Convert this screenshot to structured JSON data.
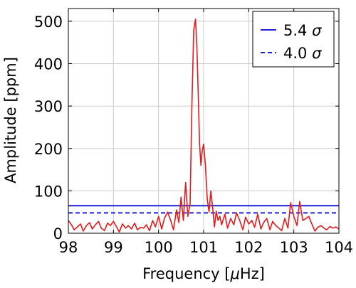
{
  "chart_data": {
    "type": "line",
    "xlabel_prefix": "Frequency [",
    "xlabel_mu": "μ",
    "xlabel_suffix": "Hz]",
    "ylabel": "Amplitude [ppm]",
    "xlim": [
      98,
      104
    ],
    "ylim": [
      0,
      530
    ],
    "xticks": [
      98,
      99,
      100,
      101,
      102,
      103,
      104
    ],
    "yticks": [
      0,
      100,
      200,
      300,
      400,
      500
    ],
    "grid": true,
    "legend_position": "top-right",
    "colors": {
      "spectrum": "#e41a1c",
      "threshold": "#1f1fd6"
    },
    "spectrum": {
      "x": [
        98.0,
        98.07,
        98.13,
        98.2,
        98.27,
        98.33,
        98.4,
        98.47,
        98.53,
        98.6,
        98.67,
        98.73,
        98.8,
        98.87,
        98.93,
        99.0,
        99.07,
        99.13,
        99.2,
        99.27,
        99.33,
        99.4,
        99.47,
        99.53,
        99.6,
        99.67,
        99.73,
        99.8,
        99.87,
        99.93,
        100.0,
        100.07,
        100.13,
        100.2,
        100.27,
        100.33,
        100.4,
        100.45,
        100.5,
        100.55,
        100.6,
        100.65,
        100.7,
        100.74,
        100.78,
        100.82,
        100.85,
        100.88,
        100.91,
        100.94,
        100.97,
        101.0,
        101.04,
        101.08,
        101.12,
        101.16,
        101.2,
        101.24,
        101.28,
        101.32,
        101.36,
        101.4,
        101.47,
        101.53,
        101.6,
        101.67,
        101.73,
        101.8,
        101.87,
        101.93,
        102.0,
        102.07,
        102.13,
        102.2,
        102.27,
        102.33,
        102.4,
        102.47,
        102.53,
        102.6,
        102.67,
        102.73,
        102.8,
        102.87,
        102.93,
        103.0,
        103.07,
        103.13,
        103.2,
        103.27,
        103.33,
        103.4,
        103.47,
        103.53,
        103.6,
        103.67,
        103.73,
        103.8,
        103.87,
        103.93,
        104.0
      ],
      "y": [
        30,
        20,
        8,
        15,
        22,
        5,
        18,
        25,
        10,
        20,
        28,
        12,
        6,
        24,
        18,
        28,
        15,
        3,
        22,
        12,
        18,
        10,
        24,
        8,
        14,
        12,
        20,
        6,
        30,
        15,
        40,
        10,
        35,
        50,
        30,
        8,
        55,
        25,
        85,
        30,
        120,
        40,
        70,
        300,
        480,
        505,
        440,
        330,
        210,
        160,
        195,
        210,
        160,
        80,
        50,
        100,
        60,
        15,
        52,
        30,
        40,
        20,
        45,
        12,
        35,
        20,
        48,
        30,
        8,
        38,
        22,
        30,
        14,
        45,
        10,
        25,
        35,
        8,
        28,
        18,
        12,
        6,
        35,
        12,
        72,
        40,
        18,
        75,
        30,
        35,
        40,
        22,
        5,
        14,
        18,
        12,
        8,
        16,
        12,
        15,
        10
      ]
    },
    "series": [
      {
        "name": "5.4",
        "sigma": "σ",
        "style": "solid",
        "y": 65
      },
      {
        "name": "4.0",
        "sigma": "σ",
        "style": "dashed",
        "y": 48
      }
    ]
  }
}
